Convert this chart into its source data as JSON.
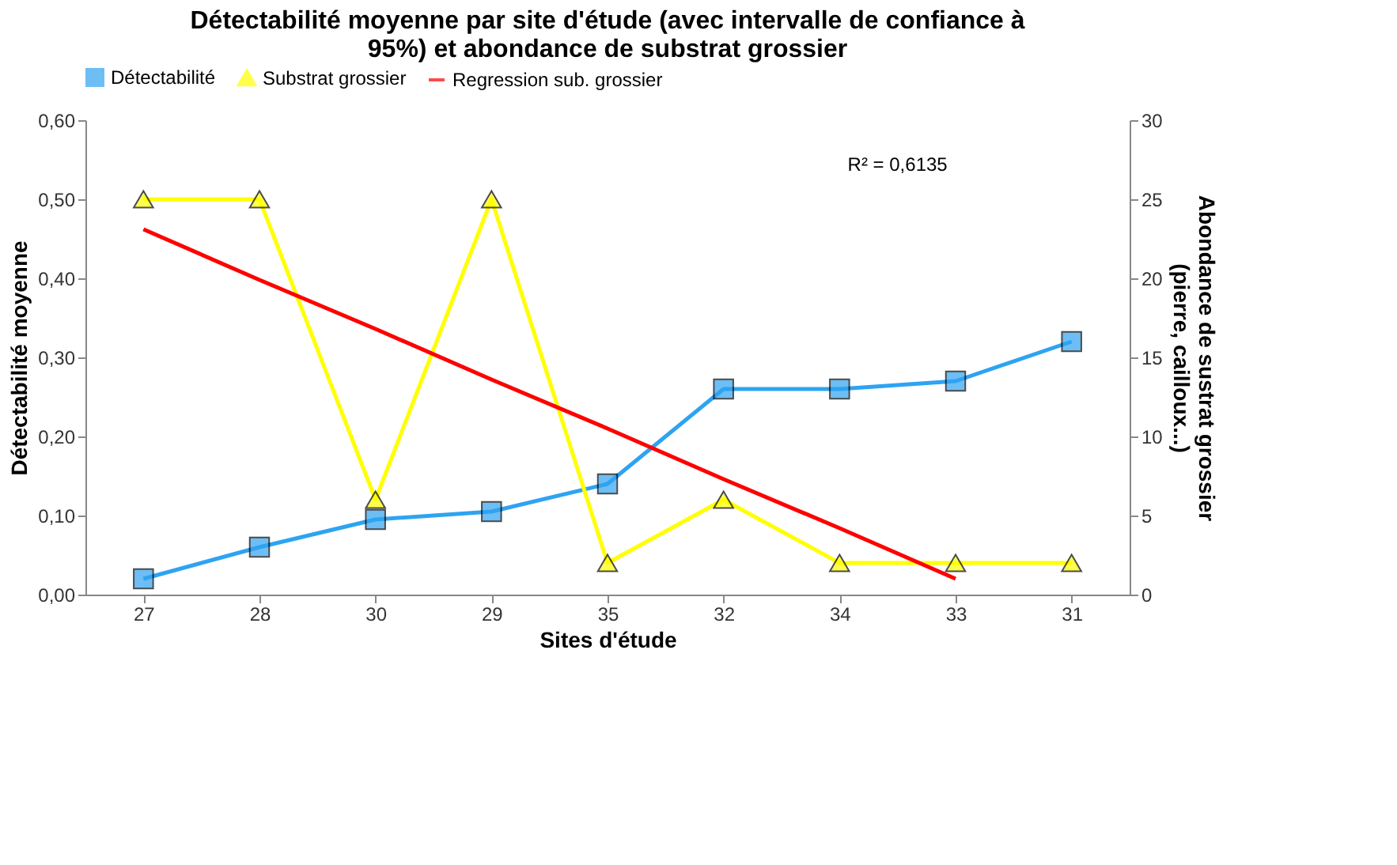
{
  "chart_data": {
    "type": "line",
    "title": "Détectabilité moyenne par site d'étude (avec intervalle de confiance à 95%) et abondance de substrat grossier",
    "xlabel": "Sites d'étude",
    "ylabel": "Détectabilité moyenne",
    "y2label": "Abondance de sustrat grossier (pierre, cailloux...)",
    "categories": [
      "27",
      "28",
      "30",
      "29",
      "35",
      "32",
      "34",
      "33",
      "31"
    ],
    "series": [
      {
        "name": "Détectabilité",
        "color": "#2ea3f2",
        "marker": "square",
        "values": [
          0.02,
          0.06,
          0.095,
          0.105,
          0.14,
          0.26,
          0.26,
          0.27,
          0.32
        ]
      },
      {
        "name": "Substrat grossier",
        "color": "#ffff00",
        "marker": "triangle",
        "axis": "y2",
        "values": [
          25,
          25,
          6,
          25,
          2,
          6,
          2,
          2,
          2
        ]
      },
      {
        "name": "Regression sub. grossier",
        "color": "#ff0000",
        "marker": "none",
        "axis": "y2",
        "values": [
          23.1,
          19.9,
          16.8,
          13.6,
          10.5,
          7.3,
          4.2,
          1.0,
          null
        ]
      }
    ],
    "ylim": [
      0,
      0.6
    ],
    "yticks": [
      {
        "value": 0,
        "label": "0,00"
      },
      {
        "value": 0.1,
        "label": "0,10"
      },
      {
        "value": 0.2,
        "label": "0,20"
      },
      {
        "value": 0.3,
        "label": "0,30"
      },
      {
        "value": 0.4,
        "label": "0,40"
      },
      {
        "value": 0.5,
        "label": "0,50"
      },
      {
        "value": 0.6,
        "label": "0,60"
      }
    ],
    "y2lim": [
      0,
      30
    ],
    "y2ticks": [
      0,
      5,
      10,
      15,
      20,
      25,
      30
    ],
    "annotations": [
      "R² = 0,6135"
    ],
    "legend": "top",
    "grid": false
  }
}
